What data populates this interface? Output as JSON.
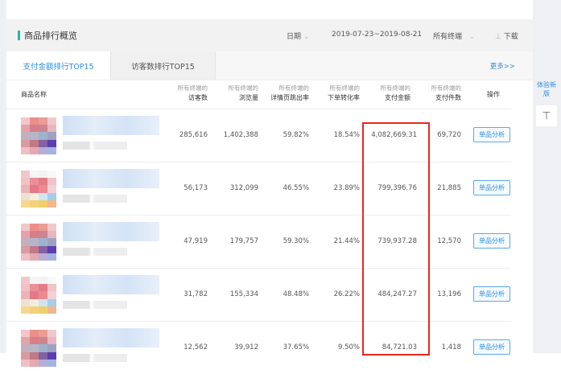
{
  "header": {
    "title": "商品排行概览",
    "date_label": "日期",
    "date_range": "2019-07-23~2019-08-21",
    "terminal": "所有终端",
    "download": "下载"
  },
  "tabs": [
    {
      "label": "支付金额排行TOP15",
      "active": true
    },
    {
      "label": "访客数排行TOP15",
      "active": false
    }
  ],
  "more": "更多>>",
  "side": {
    "new_version": "体验新版",
    "top_icon": "arrow-to-top-icon"
  },
  "columns": [
    {
      "sub": "",
      "label": "商品名称"
    },
    {
      "sub": "所有终端的",
      "label": "访客数"
    },
    {
      "sub": "所有终端的",
      "label": "浏览量"
    },
    {
      "sub": "所有终端的",
      "label": "详情页跳出率"
    },
    {
      "sub": "所有终端的",
      "label": "下单转化率"
    },
    {
      "sub": "所有终端的",
      "label": "支付金额"
    },
    {
      "sub": "所有终端的",
      "label": "支付件数"
    },
    {
      "sub": "",
      "label": "操作"
    }
  ],
  "rows": [
    {
      "visitors": "285,616",
      "views": "1,402,388",
      "bounce": "59.82%",
      "conv": "18.54%",
      "amount": "4,082,669.31",
      "pieces": "69,720",
      "action": "单品分析"
    },
    {
      "visitors": "56,173",
      "views": "312,099",
      "bounce": "46.55%",
      "conv": "23.89%",
      "amount": "799,396.76",
      "pieces": "21,885",
      "action": "单品分析"
    },
    {
      "visitors": "47,919",
      "views": "179,757",
      "bounce": "59.30%",
      "conv": "21.44%",
      "amount": "739,937.28",
      "pieces": "12,570",
      "action": "单品分析"
    },
    {
      "visitors": "31,782",
      "views": "155,334",
      "bounce": "48.48%",
      "conv": "26.22%",
      "amount": "484,247.27",
      "pieces": "13,196",
      "action": "单品分析"
    },
    {
      "visitors": "12,562",
      "views": "39,912",
      "bounce": "37.65%",
      "conv": "9.50%",
      "amount": "84,721.03",
      "pieces": "1,418",
      "action": "单品分析"
    }
  ],
  "colors": {
    "accent": "#2f8fe0",
    "highlight_box": "#e8281e",
    "title_bar": "#2bb3b0"
  }
}
